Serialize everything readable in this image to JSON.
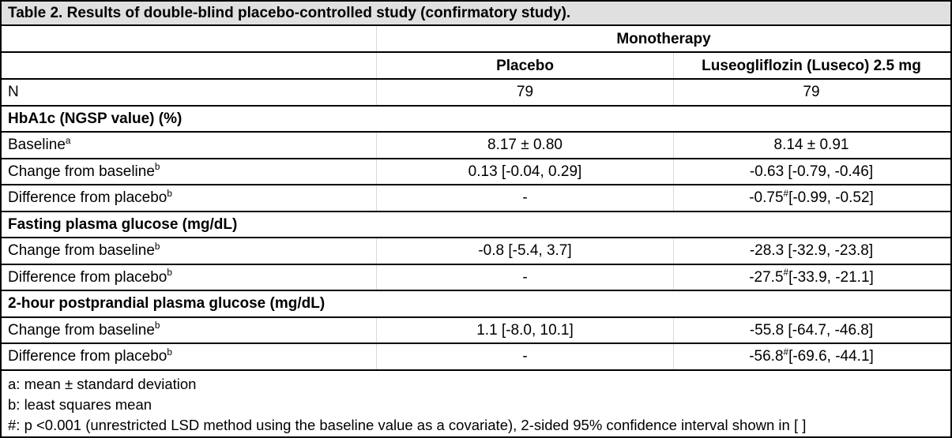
{
  "table": {
    "title": "Table 2. Results of double-blind placebo-controlled study (confirmatory study).",
    "group_header": "Monotherapy",
    "columns": [
      "Placebo",
      "Luseogliflozin (Luseco) 2.5 mg"
    ],
    "rows": [
      {
        "type": "data",
        "label": {
          "text": "N"
        },
        "values": [
          {
            "text": "79"
          },
          {
            "text": "79"
          }
        ]
      },
      {
        "type": "section",
        "label": {
          "text": "HbA1c (NGSP value) (%)"
        }
      },
      {
        "type": "data",
        "label": {
          "text": "Baseline",
          "sup": "a"
        },
        "values": [
          {
            "text": "8.17 ± 0.80"
          },
          {
            "text": "8.14 ± 0.91"
          }
        ]
      },
      {
        "type": "data",
        "label": {
          "text": "Change from baseline",
          "sup": "b"
        },
        "values": [
          {
            "text": "0.13 [-0.04, 0.29]"
          },
          {
            "text": "-0.63 [-0.79, -0.46]"
          }
        ]
      },
      {
        "type": "data",
        "label": {
          "text": "Difference from placebo",
          "sup": "b"
        },
        "values": [
          {
            "text": "-"
          },
          {
            "text": "-0.75",
            "sup": "#",
            "after": " [-0.99, -0.52]"
          }
        ]
      },
      {
        "type": "section",
        "label": {
          "text": "Fasting plasma glucose (mg/dL)"
        }
      },
      {
        "type": "data",
        "label": {
          "text": "Change from baseline",
          "sup": "b"
        },
        "values": [
          {
            "text": "-0.8 [-5.4, 3.7]"
          },
          {
            "text": "-28.3 [-32.9, -23.8]"
          }
        ]
      },
      {
        "type": "data",
        "label": {
          "text": "Difference from placebo",
          "sup": "b"
        },
        "values": [
          {
            "text": "-"
          },
          {
            "text": "-27.5",
            "sup": "#",
            "after": " [-33.9, -21.1]"
          }
        ]
      },
      {
        "type": "section",
        "label": {
          "text": "2-hour postprandial plasma glucose (mg/dL)"
        }
      },
      {
        "type": "data",
        "label": {
          "text": "Change from baseline",
          "sup": "b"
        },
        "values": [
          {
            "text": "1.1 [-8.0, 10.1]"
          },
          {
            "text": "-55.8 [-64.7, -46.8]"
          }
        ]
      },
      {
        "type": "data",
        "label": {
          "text": "Difference from placebo",
          "sup": "b"
        },
        "values": [
          {
            "text": "-"
          },
          {
            "text": "-56.8",
            "sup": "#",
            "after": " [-69.6, -44.1]"
          }
        ]
      }
    ],
    "footnotes": [
      "a: mean ± standard deviation",
      "b: least squares mean",
      "#: p <0.001 (unrestricted LSD method using the baseline value as a covariate), 2-sided 95% confidence interval shown in [ ]"
    ],
    "colors": {
      "title_background": "#e0e0e0",
      "border": "#000000",
      "text": "#000000"
    }
  }
}
